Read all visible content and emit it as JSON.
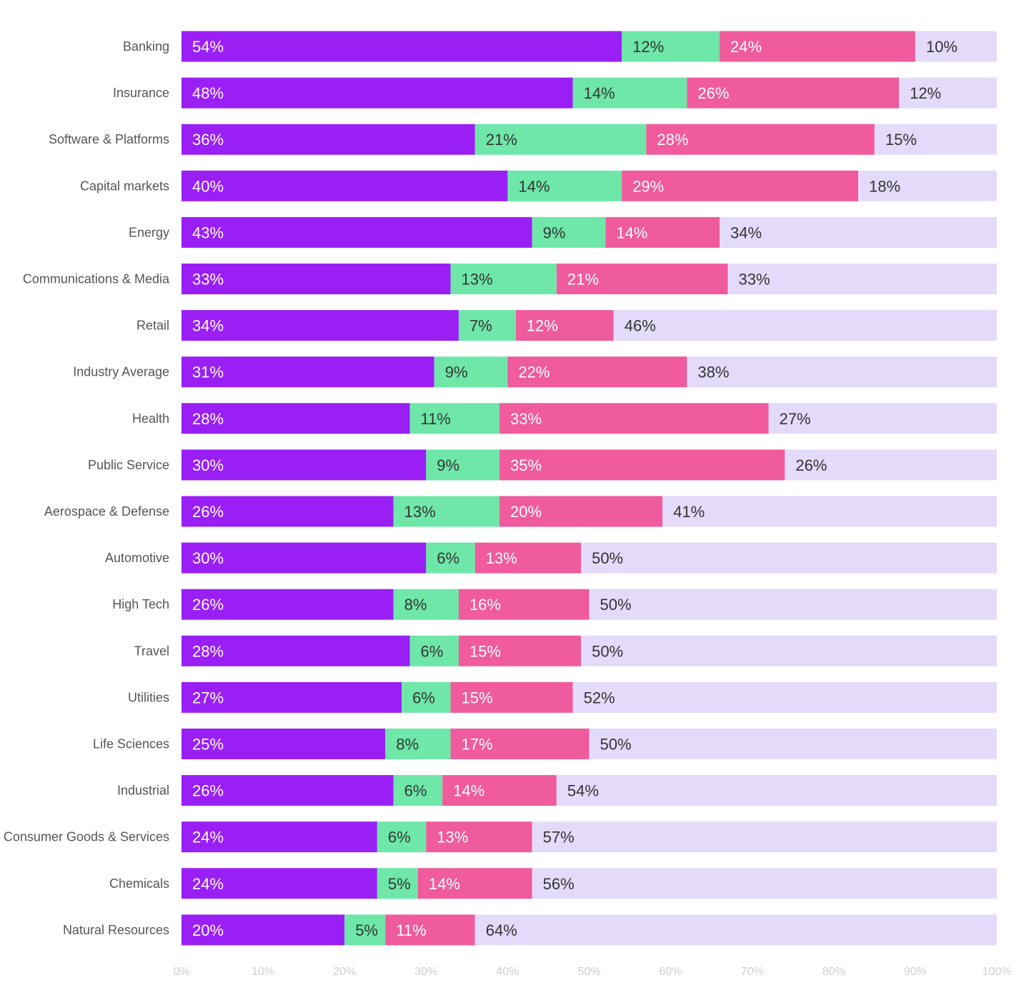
{
  "chart_data": {
    "type": "bar",
    "orientation": "horizontal",
    "stacked": true,
    "categories": [
      "Banking",
      "Insurance",
      "Software & Platforms",
      "Capital markets",
      "Energy",
      "Communications & Media",
      "Retail",
      "Industry Average",
      "Health",
      "Public Service",
      "Aerospace & Defense",
      "Automotive",
      "High Tech",
      "Travel",
      "Utilities",
      "Life Sciences",
      "Industrial",
      "Consumer Goods & Services",
      "Chemicals",
      "Natural Resources"
    ],
    "series": [
      {
        "color": "#9a1ff5",
        "label_color": "#ffffff",
        "values": [
          54,
          48,
          36,
          40,
          43,
          33,
          34,
          31,
          28,
          30,
          26,
          30,
          26,
          28,
          27,
          25,
          26,
          24,
          24,
          20
        ]
      },
      {
        "color": "#6ee7a8",
        "label_color": "#333333",
        "values": [
          12,
          14,
          21,
          14,
          9,
          13,
          7,
          9,
          11,
          9,
          13,
          6,
          8,
          6,
          6,
          8,
          6,
          6,
          5,
          5
        ]
      },
      {
        "color": "#ef5b9c",
        "label_color": "#ffffff",
        "values": [
          24,
          26,
          28,
          29,
          14,
          21,
          12,
          22,
          33,
          35,
          20,
          13,
          16,
          15,
          15,
          17,
          14,
          13,
          14,
          11
        ]
      },
      {
        "color": "#e4dbfb",
        "label_color": "#333333",
        "values": [
          10,
          12,
          15,
          18,
          34,
          33,
          46,
          38,
          27,
          26,
          41,
          50,
          50,
          50,
          52,
          50,
          54,
          57,
          56,
          64
        ]
      }
    ],
    "xlim": [
      0,
      100
    ],
    "x_ticks": [
      "0%",
      "10%",
      "20%",
      "30%",
      "40%",
      "50%",
      "60%",
      "70%",
      "80%",
      "90%",
      "100%"
    ],
    "title": "",
    "xlabel": "",
    "ylabel": "",
    "legend": "none",
    "grid": false
  }
}
